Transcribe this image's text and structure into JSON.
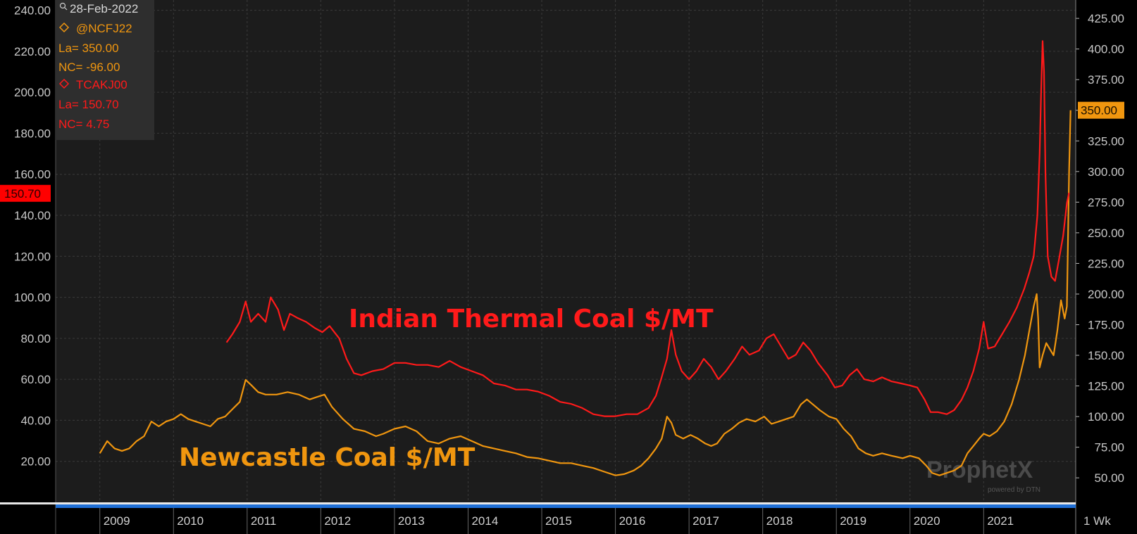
{
  "legend": {
    "date": "28-Feb-2022",
    "series1_symbol": "@NCFJ22",
    "series1_last": "La= 350.00",
    "series1_change": "NC= -96.00",
    "series2_symbol": "TCAKJ00",
    "series2_last": "La= 150.70",
    "series2_change": "NC= 4.75"
  },
  "left_marker": "150.70",
  "right_marker": "350.00",
  "timeframe": "1 Wk",
  "watermark": {
    "brand": "ProphetX",
    "tagline": "powered by DTN"
  },
  "colors": {
    "indian": "#ff1a1a",
    "newcastle": "#f0960f",
    "background": "#1c1c1c",
    "grid": "#3a3a3a"
  },
  "chart_data": {
    "type": "line",
    "x_unit": "decimal year",
    "xlim": [
      2008.4,
      2022.25
    ],
    "x_tick_labels": [
      "2009",
      "2010",
      "2011",
      "2012",
      "2013",
      "2014",
      "2015",
      "2016",
      "2017",
      "2018",
      "2019",
      "2020",
      "2021"
    ],
    "left_axis": {
      "ylim": [
        0,
        245
      ],
      "tick_labels": [
        "20.00",
        "40.00",
        "60.00",
        "80.00",
        "100.00",
        "120.00",
        "140.00",
        "160.00",
        "180.00",
        "200.00",
        "220.00",
        "240.00"
      ]
    },
    "right_axis": {
      "ylim": [
        30,
        440
      ],
      "tick_labels": [
        "50.00",
        "75.00",
        "100.00",
        "125.00",
        "150.00",
        "175.00",
        "200.00",
        "225.00",
        "250.00",
        "275.00",
        "300.00",
        "325.00",
        "350.00",
        "375.00",
        "400.00",
        "425.00"
      ]
    },
    "annotations": [
      "Indian Thermal Coal $/MT",
      "Newcastle Coal $/MT"
    ],
    "series": [
      {
        "name": "Indian Thermal Coal $/MT",
        "axis": "left",
        "points": [
          [
            2010.72,
            78
          ],
          [
            2010.8,
            82
          ],
          [
            2010.9,
            88
          ],
          [
            2010.98,
            98
          ],
          [
            2011.05,
            88
          ],
          [
            2011.15,
            92
          ],
          [
            2011.25,
            88
          ],
          [
            2011.32,
            100
          ],
          [
            2011.42,
            94
          ],
          [
            2011.5,
            84
          ],
          [
            2011.58,
            92
          ],
          [
            2011.68,
            90
          ],
          [
            2011.8,
            88
          ],
          [
            2011.92,
            85
          ],
          [
            2012.02,
            83
          ],
          [
            2012.12,
            86
          ],
          [
            2012.25,
            80
          ],
          [
            2012.35,
            70
          ],
          [
            2012.45,
            63
          ],
          [
            2012.55,
            62
          ],
          [
            2012.7,
            64
          ],
          [
            2012.85,
            65
          ],
          [
            2013.0,
            68
          ],
          [
            2013.15,
            68
          ],
          [
            2013.3,
            67
          ],
          [
            2013.45,
            67
          ],
          [
            2013.6,
            66
          ],
          [
            2013.75,
            69
          ],
          [
            2013.9,
            66
          ],
          [
            2014.05,
            64
          ],
          [
            2014.2,
            62
          ],
          [
            2014.35,
            58
          ],
          [
            2014.5,
            57
          ],
          [
            2014.65,
            55
          ],
          [
            2014.8,
            55
          ],
          [
            2014.95,
            54
          ],
          [
            2015.1,
            52
          ],
          [
            2015.25,
            49
          ],
          [
            2015.4,
            48
          ],
          [
            2015.55,
            46
          ],
          [
            2015.7,
            43
          ],
          [
            2015.85,
            42
          ],
          [
            2016.0,
            42
          ],
          [
            2016.15,
            43
          ],
          [
            2016.3,
            43
          ],
          [
            2016.45,
            46
          ],
          [
            2016.55,
            52
          ],
          [
            2016.62,
            60
          ],
          [
            2016.7,
            70
          ],
          [
            2016.76,
            84
          ],
          [
            2016.82,
            72
          ],
          [
            2016.9,
            64
          ],
          [
            2017.0,
            60
          ],
          [
            2017.1,
            64
          ],
          [
            2017.2,
            70
          ],
          [
            2017.3,
            66
          ],
          [
            2017.4,
            60
          ],
          [
            2017.5,
            64
          ],
          [
            2017.62,
            70
          ],
          [
            2017.72,
            76
          ],
          [
            2017.82,
            72
          ],
          [
            2017.95,
            74
          ],
          [
            2018.05,
            80
          ],
          [
            2018.15,
            82
          ],
          [
            2018.25,
            76
          ],
          [
            2018.35,
            70
          ],
          [
            2018.45,
            72
          ],
          [
            2018.55,
            78
          ],
          [
            2018.65,
            74
          ],
          [
            2018.75,
            68
          ],
          [
            2018.88,
            62
          ],
          [
            2018.98,
            56
          ],
          [
            2019.08,
            57
          ],
          [
            2019.18,
            62
          ],
          [
            2019.28,
            65
          ],
          [
            2019.38,
            60
          ],
          [
            2019.5,
            59
          ],
          [
            2019.62,
            61
          ],
          [
            2019.75,
            59
          ],
          [
            2019.88,
            58
          ],
          [
            2020.0,
            57
          ],
          [
            2020.1,
            56
          ],
          [
            2020.2,
            50
          ],
          [
            2020.28,
            44
          ],
          [
            2020.38,
            44
          ],
          [
            2020.5,
            43
          ],
          [
            2020.6,
            45
          ],
          [
            2020.7,
            50
          ],
          [
            2020.78,
            56
          ],
          [
            2020.86,
            64
          ],
          [
            2020.94,
            75
          ],
          [
            2021.0,
            88
          ],
          [
            2021.06,
            75
          ],
          [
            2021.15,
            76
          ],
          [
            2021.25,
            82
          ],
          [
            2021.35,
            88
          ],
          [
            2021.45,
            95
          ],
          [
            2021.55,
            104
          ],
          [
            2021.62,
            112
          ],
          [
            2021.68,
            120
          ],
          [
            2021.73,
            140
          ],
          [
            2021.76,
            170
          ],
          [
            2021.78,
            200
          ],
          [
            2021.8,
            225
          ],
          [
            2021.82,
            210
          ],
          [
            2021.84,
            160
          ],
          [
            2021.87,
            120
          ],
          [
            2021.92,
            110
          ],
          [
            2021.97,
            108
          ],
          [
            2022.02,
            118
          ],
          [
            2022.08,
            130
          ],
          [
            2022.13,
            146
          ],
          [
            2022.16,
            151
          ]
        ]
      },
      {
        "name": "Newcastle Coal $/MT",
        "axis": "right",
        "points": [
          [
            2009.0,
            70
          ],
          [
            2009.1,
            80
          ],
          [
            2009.2,
            74
          ],
          [
            2009.3,
            72
          ],
          [
            2009.4,
            74
          ],
          [
            2009.5,
            80
          ],
          [
            2009.6,
            84
          ],
          [
            2009.7,
            96
          ],
          [
            2009.8,
            92
          ],
          [
            2009.9,
            96
          ],
          [
            2010.0,
            98
          ],
          [
            2010.1,
            102
          ],
          [
            2010.2,
            98
          ],
          [
            2010.3,
            96
          ],
          [
            2010.4,
            94
          ],
          [
            2010.5,
            92
          ],
          [
            2010.6,
            98
          ],
          [
            2010.7,
            100
          ],
          [
            2010.8,
            106
          ],
          [
            2010.9,
            112
          ],
          [
            2010.98,
            130
          ],
          [
            2011.05,
            126
          ],
          [
            2011.15,
            120
          ],
          [
            2011.25,
            118
          ],
          [
            2011.4,
            118
          ],
          [
            2011.55,
            120
          ],
          [
            2011.7,
            118
          ],
          [
            2011.85,
            114
          ],
          [
            2011.95,
            116
          ],
          [
            2012.05,
            118
          ],
          [
            2012.15,
            108
          ],
          [
            2012.3,
            98
          ],
          [
            2012.45,
            90
          ],
          [
            2012.6,
            88
          ],
          [
            2012.75,
            84
          ],
          [
            2012.85,
            86
          ],
          [
            2013.0,
            90
          ],
          [
            2013.15,
            92
          ],
          [
            2013.3,
            88
          ],
          [
            2013.45,
            80
          ],
          [
            2013.6,
            78
          ],
          [
            2013.75,
            82
          ],
          [
            2013.9,
            84
          ],
          [
            2014.05,
            80
          ],
          [
            2014.2,
            76
          ],
          [
            2014.35,
            74
          ],
          [
            2014.5,
            72
          ],
          [
            2014.65,
            70
          ],
          [
            2014.8,
            67
          ],
          [
            2014.95,
            66
          ],
          [
            2015.1,
            64
          ],
          [
            2015.25,
            62
          ],
          [
            2015.4,
            62
          ],
          [
            2015.55,
            60
          ],
          [
            2015.7,
            58
          ],
          [
            2015.85,
            55
          ],
          [
            2016.0,
            52
          ],
          [
            2016.12,
            53
          ],
          [
            2016.25,
            56
          ],
          [
            2016.35,
            60
          ],
          [
            2016.45,
            66
          ],
          [
            2016.55,
            74
          ],
          [
            2016.63,
            82
          ],
          [
            2016.7,
            100
          ],
          [
            2016.76,
            95
          ],
          [
            2016.82,
            85
          ],
          [
            2016.92,
            82
          ],
          [
            2017.02,
            85
          ],
          [
            2017.12,
            82
          ],
          [
            2017.22,
            78
          ],
          [
            2017.3,
            76
          ],
          [
            2017.38,
            78
          ],
          [
            2017.48,
            86
          ],
          [
            2017.58,
            90
          ],
          [
            2017.68,
            95
          ],
          [
            2017.78,
            98
          ],
          [
            2017.9,
            96
          ],
          [
            2018.02,
            100
          ],
          [
            2018.12,
            94
          ],
          [
            2018.22,
            96
          ],
          [
            2018.32,
            98
          ],
          [
            2018.42,
            100
          ],
          [
            2018.52,
            110
          ],
          [
            2018.6,
            114
          ],
          [
            2018.68,
            110
          ],
          [
            2018.78,
            105
          ],
          [
            2018.9,
            100
          ],
          [
            2019.0,
            98
          ],
          [
            2019.1,
            90
          ],
          [
            2019.2,
            84
          ],
          [
            2019.3,
            74
          ],
          [
            2019.4,
            70
          ],
          [
            2019.5,
            68
          ],
          [
            2019.62,
            70
          ],
          [
            2019.75,
            68
          ],
          [
            2019.9,
            66
          ],
          [
            2020.0,
            68
          ],
          [
            2020.12,
            66
          ],
          [
            2020.22,
            60
          ],
          [
            2020.3,
            54
          ],
          [
            2020.4,
            52
          ],
          [
            2020.5,
            54
          ],
          [
            2020.6,
            56
          ],
          [
            2020.7,
            60
          ],
          [
            2020.78,
            70
          ],
          [
            2020.86,
            76
          ],
          [
            2020.94,
            82
          ],
          [
            2021.0,
            86
          ],
          [
            2021.08,
            84
          ],
          [
            2021.18,
            88
          ],
          [
            2021.28,
            96
          ],
          [
            2021.38,
            110
          ],
          [
            2021.48,
            130
          ],
          [
            2021.56,
            150
          ],
          [
            2021.62,
            170
          ],
          [
            2021.68,
            190
          ],
          [
            2021.72,
            200
          ],
          [
            2021.74,
            180
          ],
          [
            2021.76,
            140
          ],
          [
            2021.8,
            150
          ],
          [
            2021.85,
            160
          ],
          [
            2021.9,
            155
          ],
          [
            2021.95,
            150
          ],
          [
            2022.0,
            170
          ],
          [
            2022.05,
            195
          ],
          [
            2022.1,
            180
          ],
          [
            2022.13,
            190
          ],
          [
            2022.16,
            300
          ],
          [
            2022.18,
            350
          ]
        ]
      }
    ]
  }
}
